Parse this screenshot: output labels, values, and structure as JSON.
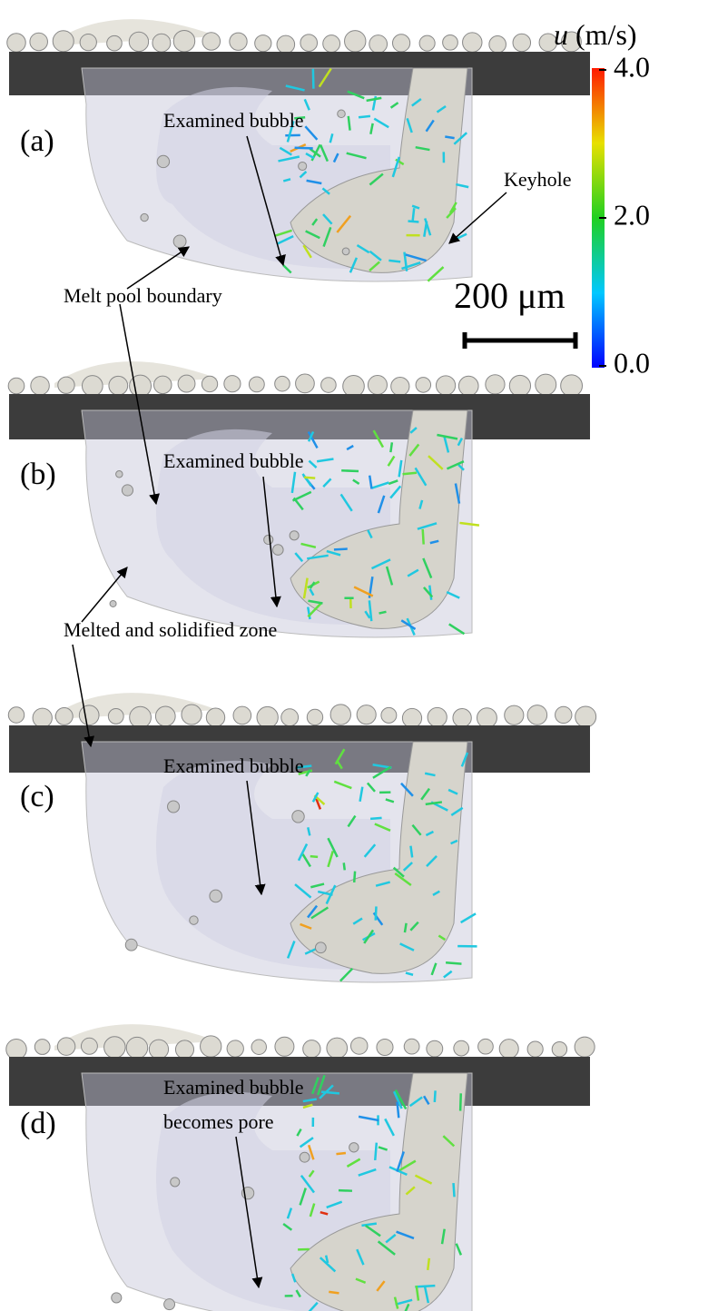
{
  "colorbar": {
    "symbol": "u",
    "unit": "(m/s)",
    "range": [
      0,
      4
    ],
    "ticks": [
      {
        "value": 4,
        "label": "4.0"
      },
      {
        "value": 2,
        "label": "2.0"
      },
      {
        "value": 0,
        "label": "0.0"
      }
    ]
  },
  "scale_bar": "200 μm",
  "panels": [
    {
      "label": "(a)",
      "annotations": [
        "Examined bubble",
        "Keyhole",
        "Melt pool boundary"
      ]
    },
    {
      "label": "(b)",
      "annotations": [
        "Examined bubble",
        "Melted and solidified zone"
      ]
    },
    {
      "label": "(c)",
      "annotations": [
        "Examined bubble"
      ]
    },
    {
      "label": "(d)",
      "annotations": [
        "Examined bubble",
        "becomes pore"
      ]
    }
  ]
}
